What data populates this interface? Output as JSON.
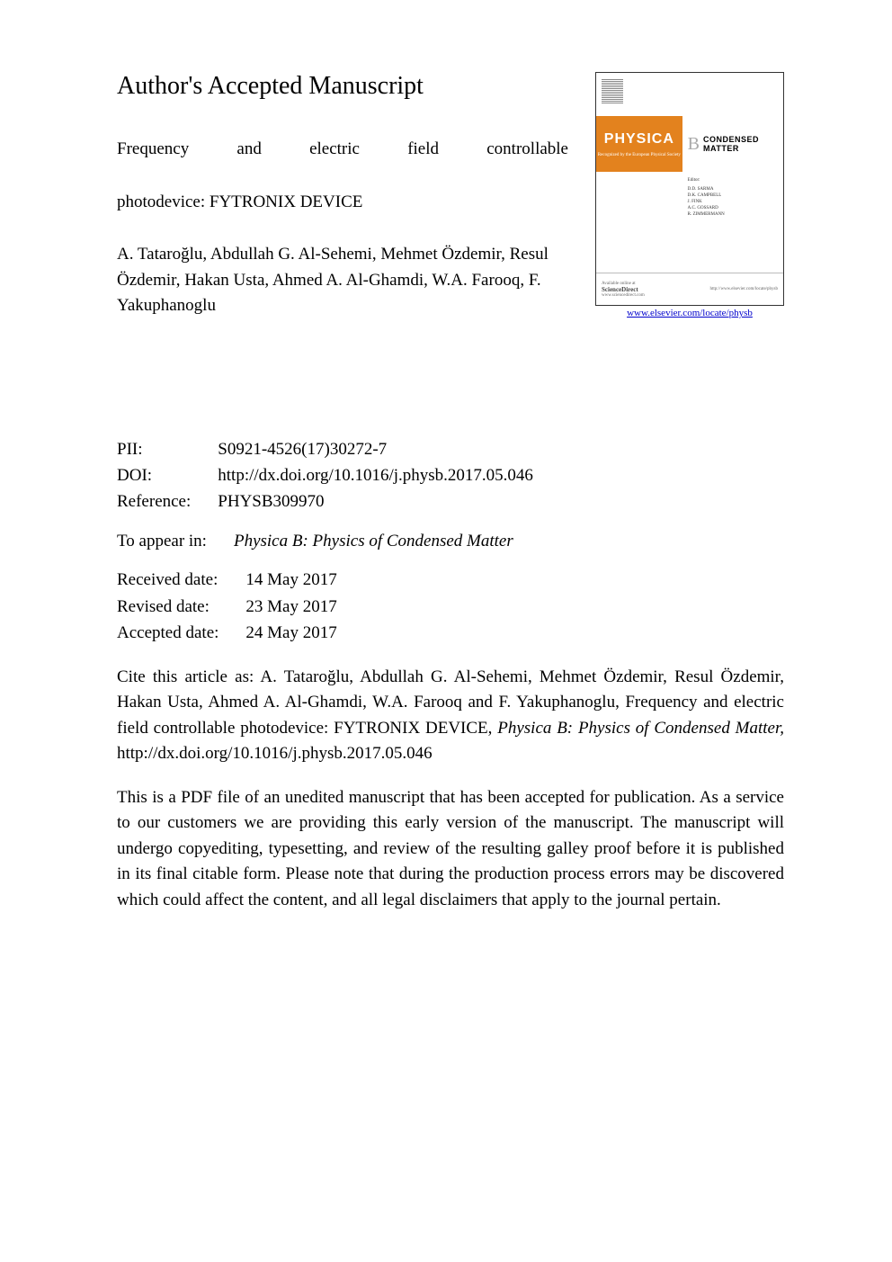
{
  "heading": "Author's Accepted Manuscript",
  "title_line1": "Frequency and electric field controllable",
  "title_line2": "photodevice: FYTRONIX DEVICE",
  "authors": "A. Tataroğlu, Abdullah G. Al-Sehemi, Mehmet Özdemir, Resul Özdemir, Hakan Usta, Ahmed A. Al-Ghamdi, W.A. Farooq, F. Yakuphanoglu",
  "cover": {
    "journal_name": "PHYSICA",
    "journal_sub": "Recognized by the European Physical Society",
    "section_letter": "B",
    "section_name": "CONDENSED MATTER",
    "editor_label": "Editor:",
    "editors": "D.D. SARMA\nD.K. CAMPBELL\nJ. FINK\nA.C. GOSSARD\nR. ZIMMERMANN",
    "footer_left_top": "Available online at",
    "footer_left_logo": "ScienceDirect",
    "footer_left_url": "www.sciencedirect.com",
    "footer_right": "http://www.elsevier.com/locate/physb",
    "url": "www.elsevier.com/locate/physb",
    "colors": {
      "orange": "#e3821e",
      "link": "#0000cc",
      "border": "#333333"
    }
  },
  "meta": {
    "pii_label": "PII:",
    "pii_value": "S0921-4526(17)30272-7",
    "doi_label": "DOI:",
    "doi_value": "http://dx.doi.org/10.1016/j.physb.2017.05.046",
    "ref_label": "Reference:",
    "ref_value": "PHYSB309970",
    "appear_label": "To appear in:",
    "appear_value": "Physica B: Physics of Condensed Matter",
    "received_label": "Received date:",
    "received_value": "14 May 2017",
    "revised_label": "Revised date:",
    "revised_value": "23 May 2017",
    "accepted_label": "Accepted date:",
    "accepted_value": "24 May 2017"
  },
  "citation": {
    "pre": "Cite this article as: A. Tataroğlu, Abdullah G. Al-Sehemi, Mehmet Özdemir, Resul Özdemir, Hakan Usta, Ahmed A. Al-Ghamdi, W.A. Farooq and F. Yakuphanoglu, Frequency and electric field controllable photodevice: FYTRONIX DEVICE, ",
    "journal": "Physica B: Physics of Condensed Matter,",
    "post": " http://dx.doi.org/10.1016/j.physb.2017.05.046"
  },
  "disclaimer": "This is a PDF file of an unedited manuscript that has been accepted for publication. As a service to our customers we are providing this early version of the manuscript. The manuscript will undergo copyediting, typesetting, and review of the resulting galley proof before it is published in its final citable form. Please note that during the production process errors may be discovered which could affect the content, and all legal disclaimers that apply to the journal pertain."
}
